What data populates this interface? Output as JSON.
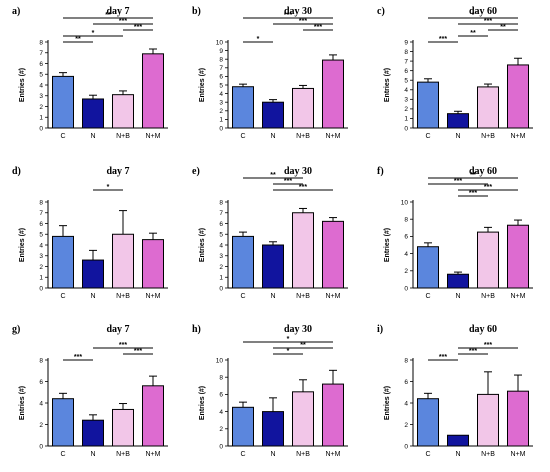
{
  "chart_data": [
    {
      "type": "bar",
      "letter": "a)",
      "title": "day 7",
      "ylabel": "Entries (#)",
      "categories": [
        "C",
        "N",
        "N+B",
        "N+M"
      ],
      "values": [
        4.8,
        2.7,
        3.1,
        6.9
      ],
      "errors": [
        0.35,
        0.35,
        0.35,
        0.45
      ],
      "ylim": [
        0,
        8
      ],
      "yticks": [
        0,
        1,
        2,
        3,
        4,
        5,
        6,
        7,
        8
      ],
      "significance": [
        {
          "from": 0,
          "to": 1,
          "label": "**",
          "level": 2
        },
        {
          "from": 0,
          "to": 2,
          "label": "*",
          "level": 3
        },
        {
          "from": 2,
          "to": 3,
          "label": "***",
          "level": 4
        },
        {
          "from": 1,
          "to": 3,
          "label": "***",
          "level": 5
        },
        {
          "from": 0,
          "to": 3,
          "label": "**",
          "level": 6
        }
      ]
    },
    {
      "type": "bar",
      "letter": "b)",
      "title": "day 30",
      "ylabel": "Entries (#)",
      "categories": [
        "C",
        "N",
        "N+B",
        "N+M"
      ],
      "values": [
        4.8,
        3.0,
        4.6,
        7.9
      ],
      "errors": [
        0.3,
        0.3,
        0.35,
        0.6
      ],
      "ylim": [
        0,
        10
      ],
      "yticks": [
        0,
        1,
        2,
        3,
        4,
        5,
        6,
        7,
        8,
        9,
        10
      ],
      "significance": [
        {
          "from": 0,
          "to": 1,
          "label": "*",
          "level": 2
        },
        {
          "from": 2,
          "to": 3,
          "label": "***",
          "level": 4
        },
        {
          "from": 1,
          "to": 3,
          "label": "***",
          "level": 5
        },
        {
          "from": 0,
          "to": 3,
          "label": "***",
          "level": 6
        }
      ]
    },
    {
      "type": "bar",
      "letter": "c)",
      "title": "day 60",
      "ylabel": "Entries (#)",
      "categories": [
        "C",
        "N",
        "N+B",
        "N+M"
      ],
      "values": [
        4.8,
        1.5,
        4.3,
        6.6
      ],
      "errors": [
        0.35,
        0.25,
        0.3,
        0.7
      ],
      "ylim": [
        0,
        9
      ],
      "yticks": [
        0,
        1,
        2,
        3,
        4,
        5,
        6,
        7,
        8,
        9
      ],
      "significance": [
        {
          "from": 0,
          "to": 1,
          "label": "***",
          "level": 2
        },
        {
          "from": 1,
          "to": 2,
          "label": "**",
          "level": 3
        },
        {
          "from": 2,
          "to": 3,
          "label": "**",
          "level": 4
        },
        {
          "from": 1,
          "to": 3,
          "label": "***",
          "level": 5
        },
        {
          "from": 0,
          "to": 3,
          "label": "*",
          "level": 6
        }
      ]
    },
    {
      "type": "bar",
      "letter": "d)",
      "title": "day 7",
      "ylabel": "Entries (#)",
      "categories": [
        "C",
        "N",
        "N+B",
        "N+M"
      ],
      "values": [
        4.8,
        2.6,
        5.0,
        4.5
      ],
      "errors": [
        1.0,
        0.9,
        2.2,
        0.6
      ],
      "ylim": [
        0,
        8
      ],
      "yticks": [
        0,
        1,
        2,
        3,
        4,
        5,
        6,
        7,
        8
      ],
      "significance": [
        {
          "from": 1,
          "to": 2,
          "label": "*",
          "level": 4
        }
      ]
    },
    {
      "type": "bar",
      "letter": "e)",
      "title": "day 30",
      "ylabel": "Entries (#)",
      "categories": [
        "C",
        "N",
        "N+B",
        "N+M"
      ],
      "values": [
        4.8,
        4.0,
        7.0,
        6.2
      ],
      "errors": [
        0.4,
        0.3,
        0.4,
        0.35
      ],
      "ylim": [
        0,
        8
      ],
      "yticks": [
        0,
        1,
        2,
        3,
        4,
        5,
        6,
        7,
        8
      ],
      "significance": [
        {
          "from": 1,
          "to": 3,
          "label": "***",
          "level": 4
        },
        {
          "from": 1,
          "to": 2,
          "label": "***",
          "level": 5
        },
        {
          "from": 0,
          "to": 2,
          "label": "**",
          "level": 6
        }
      ]
    },
    {
      "type": "bar",
      "letter": "f)",
      "title": "day 60",
      "ylabel": "Entries (#)",
      "categories": [
        "C",
        "N",
        "N+B",
        "N+M"
      ],
      "values": [
        4.8,
        1.6,
        6.5,
        7.3
      ],
      "errors": [
        0.45,
        0.25,
        0.55,
        0.6
      ],
      "ylim": [
        0,
        10
      ],
      "yticks": [
        0,
        2,
        4,
        6,
        8,
        10
      ],
      "significance": [
        {
          "from": 1,
          "to": 2,
          "label": "***",
          "level": 3
        },
        {
          "from": 1,
          "to": 3,
          "label": "***",
          "level": 4
        },
        {
          "from": 0,
          "to": 2,
          "label": "***",
          "level": 5
        },
        {
          "from": 0,
          "to": 3,
          "label": "**",
          "level": 6
        }
      ]
    },
    {
      "type": "bar",
      "letter": "g)",
      "title": "day 7",
      "ylabel": "Entries (#)",
      "categories": [
        "C",
        "N",
        "N+B",
        "N+M"
      ],
      "values": [
        4.4,
        2.4,
        3.4,
        5.6
      ],
      "errors": [
        0.5,
        0.5,
        0.55,
        0.9
      ],
      "ylim": [
        0,
        8
      ],
      "yticks": [
        0,
        2,
        4,
        6,
        8
      ],
      "significance": [
        {
          "from": 0,
          "to": 1,
          "label": "***",
          "level": 2
        },
        {
          "from": 2,
          "to": 3,
          "label": "***",
          "level": 3
        },
        {
          "from": 1,
          "to": 3,
          "label": "***",
          "level": 4
        }
      ]
    },
    {
      "type": "bar",
      "letter": "h)",
      "title": "day 30",
      "ylabel": "Entries (#)",
      "categories": [
        "C",
        "N",
        "N+B",
        "N+M"
      ],
      "values": [
        4.5,
        4.0,
        6.3,
        7.2
      ],
      "errors": [
        0.6,
        1.6,
        1.4,
        1.6
      ],
      "ylim": [
        0,
        10
      ],
      "yticks": [
        0,
        2,
        4,
        6,
        8,
        10
      ],
      "significance": [
        {
          "from": 1,
          "to": 2,
          "label": "*",
          "level": 3
        },
        {
          "from": 1,
          "to": 3,
          "label": "**",
          "level": 4
        },
        {
          "from": 0,
          "to": 3,
          "label": "*",
          "level": 5
        }
      ]
    },
    {
      "type": "bar",
      "letter": "i)",
      "title": "day 60",
      "ylabel": "Entries (#)",
      "categories": [
        "C",
        "N",
        "N+B",
        "N+M"
      ],
      "values": [
        4.4,
        1.0,
        4.8,
        5.1
      ],
      "errors": [
        0.5,
        0.0,
        2.1,
        1.5
      ],
      "ylim": [
        0,
        8
      ],
      "yticks": [
        0,
        2,
        4,
        6,
        8
      ],
      "significance": [
        {
          "from": 0,
          "to": 1,
          "label": "***",
          "level": 2
        },
        {
          "from": 1,
          "to": 2,
          "label": "***",
          "level": 3
        },
        {
          "from": 1,
          "to": 3,
          "label": "***",
          "level": 4
        }
      ]
    }
  ],
  "colors": {
    "C": "#5b86dd",
    "N": "#11149e",
    "N+B": "#f2c6e8",
    "N+M": "#dd6bd0"
  }
}
